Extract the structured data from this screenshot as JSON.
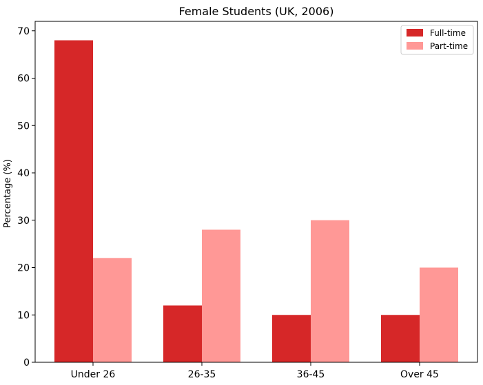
{
  "chart_data": {
    "type": "bar",
    "title": "Female Students (UK, 2006)",
    "xlabel": "",
    "ylabel": "Percentage (%)",
    "categories": [
      "Under 26",
      "26-35",
      "36-45",
      "Over 45"
    ],
    "series": [
      {
        "name": "Full-time",
        "values": [
          68,
          12,
          10,
          10
        ],
        "color": "#d62728"
      },
      {
        "name": "Part-time",
        "values": [
          22,
          28,
          30,
          20
        ],
        "color": "#ff9896"
      }
    ],
    "ylim": [
      0,
      72
    ],
    "yticks": [
      0,
      10,
      20,
      30,
      40,
      50,
      60,
      70
    ],
    "yticks_labels": [
      "0",
      "10",
      "20",
      "30",
      "40",
      "50",
      "60",
      "70"
    ],
    "grid": false,
    "legend_position": "top-right"
  }
}
